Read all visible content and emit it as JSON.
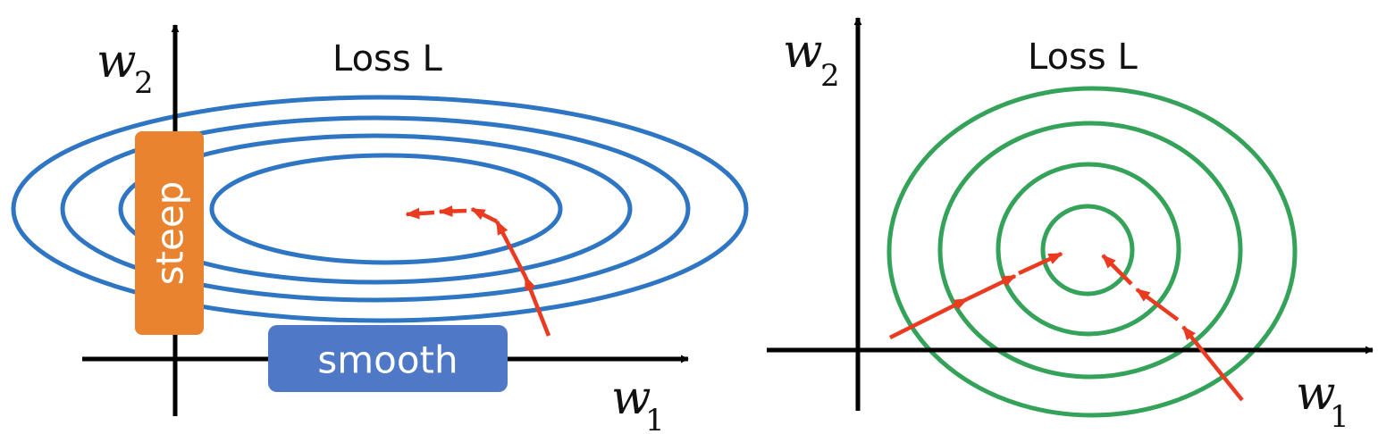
{
  "left_panel": {
    "title": "Loss L",
    "y_axis_label": {
      "symbol": "w",
      "subscript": "2"
    },
    "x_axis_label": {
      "symbol": "w",
      "subscript": "1"
    },
    "contour_color": "#2e75c4",
    "steep_label": "steep",
    "steep_color": "#e9832f",
    "smooth_label": "smooth",
    "smooth_color": "#4f79c6",
    "path_color": "#ea3a1f"
  },
  "right_panel": {
    "title": "Loss L",
    "y_axis_label": {
      "symbol": "w",
      "subscript": "2"
    },
    "x_axis_label": {
      "symbol": "w",
      "subscript": "1"
    },
    "contour_color": "#34a359",
    "path_color": "#ea3a1f"
  }
}
